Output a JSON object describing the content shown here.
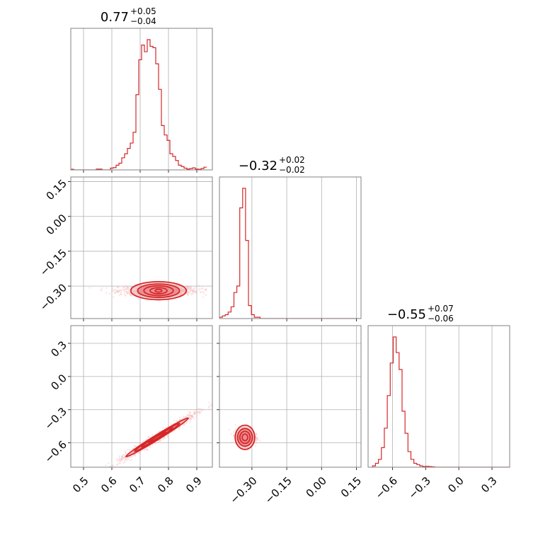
{
  "chart_data": {
    "type": "corner",
    "grid": true,
    "colors": {
      "line": "#d62728",
      "fill_light": "#f3b5b8",
      "fill_mid": "#e5737a",
      "grid": "#b0b0b0",
      "frame": "#808080"
    },
    "titles": [
      {
        "value": "0.77",
        "plus": "+0.05",
        "minus": "−0.04"
      },
      {
        "value": "−0.32",
        "plus": "+0.02",
        "minus": "−0.02"
      },
      {
        "value": "−0.55",
        "plus": "+0.07",
        "minus": "−0.06"
      }
    ],
    "params": [
      {
        "range": [
          0.455,
          0.955
        ],
        "ticks": [
          0.5,
          0.6,
          0.7,
          0.8,
          0.9
        ],
        "tick_labels": [
          "0.5",
          "0.6",
          "0.7",
          "0.8",
          "0.9"
        ]
      },
      {
        "range": [
          -0.44,
          0.17
        ],
        "ticks": [
          -0.3,
          -0.15,
          0.0,
          0.15
        ],
        "tick_labels": [
          "−0.30",
          "−0.15",
          "0.00",
          "0.15"
        ]
      },
      {
        "range": [
          -0.82,
          0.46
        ],
        "ticks": [
          -0.6,
          -0.3,
          0.0,
          0.3
        ],
        "tick_labels": [
          "−0.6",
          "−0.3",
          "0.0",
          "0.3"
        ]
      }
    ],
    "histograms": [
      {
        "bin_start": 0.455,
        "bin_width": 0.01,
        "values": [
          0.005,
          0,
          0,
          0,
          0,
          0,
          0,
          0,
          0,
          0.006,
          0.006,
          0,
          0,
          0,
          0.013,
          0.017,
          0.035,
          0.05,
          0.09,
          0.12,
          0.16,
          0.2,
          0.28,
          0.56,
          0.82,
          0.93,
          0.88,
          0.97,
          0.92,
          0.91,
          0.79,
          0.6,
          0.33,
          0.26,
          0.22,
          0.12,
          0.1,
          0.07,
          0.035,
          0.025,
          0.013,
          0.006,
          0.01,
          0.015,
          0.006,
          0.005,
          0.01,
          0.02
        ]
      },
      {
        "bin_start": -0.44,
        "bin_width": 0.0125,
        "values": [
          0.01,
          0.02,
          0.03,
          0.05,
          0.09,
          0.2,
          0.25,
          0.85,
          1.0,
          0.6,
          0.1,
          0.03,
          0.01,
          0.01,
          0,
          0,
          0,
          0,
          0,
          0,
          0,
          0,
          0,
          0,
          0,
          0,
          0,
          0,
          0,
          0,
          0,
          0,
          0,
          0,
          0,
          0,
          0,
          0,
          0,
          0,
          0,
          0,
          0,
          0,
          0,
          0,
          0,
          0
        ]
      },
      {
        "bin_start": -0.78,
        "bin_width": 0.0267,
        "values": [
          0.01,
          0.03,
          0.06,
          0.15,
          0.3,
          0.55,
          0.8,
          1.0,
          0.88,
          0.75,
          0.43,
          0.26,
          0.12,
          0.06,
          0.03,
          0.02,
          0.01,
          0.005,
          0.007,
          0.005,
          0.003,
          0,
          0,
          0,
          0,
          0,
          0,
          0,
          0,
          0,
          0,
          0,
          0,
          0,
          0,
          0,
          0,
          0,
          0,
          0,
          0,
          0,
          0,
          0,
          0,
          0,
          0
        ]
      }
    ],
    "pairs": [
      {
        "x_param": 0,
        "y_param": 1,
        "center": [
          0.765,
          -0.32
        ],
        "spread": [
          0.07,
          0.024
        ],
        "tilt": 0.0,
        "n_points": 900,
        "contour_widths": [
          [
            0.098,
            0.039
          ],
          [
            0.074,
            0.029
          ],
          [
            0.052,
            0.021
          ],
          [
            0.03,
            0.013
          ],
          [
            0.012,
            0.006
          ]
        ]
      },
      {
        "x_param": 0,
        "y_param": 2,
        "center": [
          0.76,
          -0.55
        ],
        "spread": [
          0.07,
          0.045
        ],
        "tilt": 1.58,
        "n_points": 900,
        "contour_widths": [
          [
            0.11,
            0.022
          ],
          [
            0.08,
            0.016
          ],
          [
            0.055,
            0.011
          ],
          [
            0.03,
            0.007
          ]
        ]
      },
      {
        "x_param": 1,
        "y_param": 2,
        "center": [
          -0.33,
          -0.55
        ],
        "spread": [
          0.02,
          0.07
        ],
        "tilt": 0.0,
        "n_points": 900,
        "contour_widths": [
          [
            0.042,
            0.11
          ],
          [
            0.032,
            0.08
          ],
          [
            0.022,
            0.055
          ],
          [
            0.012,
            0.03
          ]
        ]
      }
    ]
  }
}
